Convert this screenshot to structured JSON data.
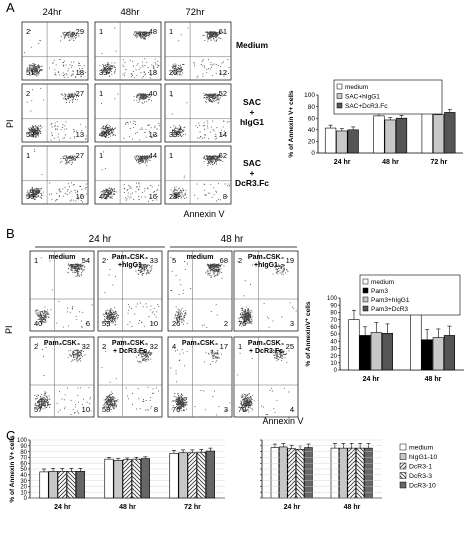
{
  "panels": {
    "A": {
      "letter": "A",
      "timepoints": [
        "24hr",
        "48hr",
        "72hr"
      ],
      "row_labels": [
        [
          "Medium"
        ],
        [
          "SAC",
          "+",
          "hIgG1"
        ],
        [
          "SAC",
          "+",
          "DcR3.Fc"
        ]
      ],
      "y_axis": "PI",
      "x_axis": "Annexin V",
      "quadrants": [
        [
          [
            2,
            29,
            51,
            18
          ],
          [
            1,
            48,
            35,
            18
          ],
          [
            1,
            61,
            26,
            12
          ]
        ],
        [
          [
            2,
            27,
            58,
            13
          ],
          [
            1,
            40,
            46,
            13
          ],
          [
            1,
            52,
            33,
            14
          ]
        ],
        [
          [
            1,
            27,
            56,
            16
          ],
          [
            1,
            44,
            40,
            16
          ],
          [
            1,
            62,
            28,
            8
          ]
        ]
      ]
    },
    "B": {
      "letter": "B",
      "col_groups": [
        "24 hr",
        "48 hr"
      ],
      "plot_labels": [
        [
          [
            "medium"
          ],
          [
            "Pam₃CSK₄",
            "+hIgG1"
          ],
          [
            "medium"
          ],
          [
            "Pam₃CSK₄",
            "+hIgG1"
          ]
        ],
        [
          [
            "Pam₃CSK₄"
          ],
          [
            "Pam₃CSK₄",
            "+ DcR3.Fc"
          ],
          [
            "Pam₃CSK₄"
          ],
          [
            "Pam₃CSK₄",
            "+ DcR3.Fc"
          ]
        ]
      ],
      "y_axis": "PI",
      "x_axis": "Annexin V",
      "quadrants": [
        [
          [
            1,
            54,
            40,
            6
          ],
          [
            2,
            33,
            55,
            10
          ],
          [
            5,
            68,
            26,
            2
          ],
          [
            2,
            19,
            76,
            3
          ]
        ],
        [
          [
            2,
            32,
            57,
            10
          ],
          [
            2,
            32,
            58,
            8
          ],
          [
            4,
            17,
            76,
            3
          ],
          [
            1,
            25,
            70,
            4
          ]
        ]
      ]
    },
    "C": {
      "letter": "C"
    }
  },
  "chart_data": [
    {
      "id": "A",
      "type": "bar",
      "categories": [
        "24 hr",
        "48 hr",
        "72 hr"
      ],
      "ylabel": "% of Annexin V+ cells",
      "ylim": [
        0,
        100
      ],
      "yticks": [
        0,
        20,
        40,
        60,
        80,
        100
      ],
      "series": [
        {
          "name": "medium",
          "values": [
            43,
            64,
            75
          ],
          "errors": [
            5,
            5,
            6
          ],
          "color": "#ffffff"
        },
        {
          "name": "SAC+hIgG1",
          "values": [
            38,
            57,
            66
          ],
          "errors": [
            4,
            4,
            5
          ],
          "color": "#c8c8c8"
        },
        {
          "name": "SAC+DcR3.Fc",
          "values": [
            40,
            60,
            70
          ],
          "errors": [
            5,
            5,
            5
          ],
          "color": "#555555"
        }
      ]
    },
    {
      "id": "B",
      "type": "bar",
      "categories": [
        "24 hr",
        "48 hr"
      ],
      "ylabel": "% of AnnexinV⁺ cells",
      "ylim": [
        0,
        100
      ],
      "yticks": [
        0,
        10,
        20,
        30,
        40,
        50,
        60,
        70,
        80,
        90,
        100
      ],
      "series": [
        {
          "name": "medium",
          "values": [
            70,
            83
          ],
          "errors": [
            13,
            16
          ],
          "color": "#ffffff"
        },
        {
          "name": "Pam3",
          "values": [
            48,
            42
          ],
          "errors": [
            12,
            14
          ],
          "color": "#000000"
        },
        {
          "name": "Pam3+hIgG1",
          "values": [
            52,
            45
          ],
          "errors": [
            14,
            12
          ],
          "color": "#c8c8c8"
        },
        {
          "name": "Pam3+DcR3",
          "values": [
            51,
            48
          ],
          "errors": [
            13,
            13
          ],
          "color": "#555555"
        }
      ]
    },
    {
      "id": "C1",
      "type": "bar",
      "categories": [
        "24 hr",
        "48 hr",
        "72 hr"
      ],
      "ylabel": "% of Annexin V+ cells",
      "ylim": [
        0,
        100
      ],
      "yticks": [
        0,
        10,
        20,
        30,
        40,
        50,
        60,
        70,
        80,
        90,
        100
      ],
      "series": [
        {
          "name": "medium",
          "values": [
            45,
            67,
            77
          ],
          "errors": [
            5,
            3,
            5
          ]
        },
        {
          "name": "hIgG1-10",
          "values": [
            46,
            65,
            78
          ],
          "errors": [
            5,
            3,
            5
          ]
        },
        {
          "name": "DcR3-1",
          "values": [
            46,
            66,
            78
          ],
          "errors": [
            5,
            3,
            5
          ]
        },
        {
          "name": "DcR3-3",
          "values": [
            46,
            67,
            79
          ],
          "errors": [
            5,
            3,
            5
          ]
        },
        {
          "name": "DcR3-10",
          "values": [
            46,
            68,
            81
          ],
          "errors": [
            5,
            3,
            5
          ]
        }
      ]
    },
    {
      "id": "C2",
      "type": "bar",
      "categories": [
        "24 hr",
        "48 hr"
      ],
      "ylim": [
        0,
        100
      ],
      "series": [
        {
          "name": "medium",
          "values": [
            87,
            86
          ],
          "errors": [
            6,
            8
          ]
        },
        {
          "name": "hIgG1-10",
          "values": [
            88,
            86
          ],
          "errors": [
            6,
            8
          ]
        },
        {
          "name": "DcR3-1",
          "values": [
            85,
            86
          ],
          "errors": [
            6,
            8
          ]
        },
        {
          "name": "DcR3-3",
          "values": [
            84,
            86
          ],
          "errors": [
            6,
            8
          ]
        },
        {
          "name": "DcR3-10",
          "values": [
            87,
            86
          ],
          "errors": [
            6,
            8
          ]
        }
      ]
    }
  ],
  "legend_C": [
    {
      "name": "medium",
      "pattern": "white"
    },
    {
      "name": "hIgG1-10",
      "pattern": "gray"
    },
    {
      "name": "DcR3-1",
      "pattern": "diag"
    },
    {
      "name": "DcR3-3",
      "pattern": "hatch"
    },
    {
      "name": "DcR3-10",
      "pattern": "dark"
    }
  ]
}
